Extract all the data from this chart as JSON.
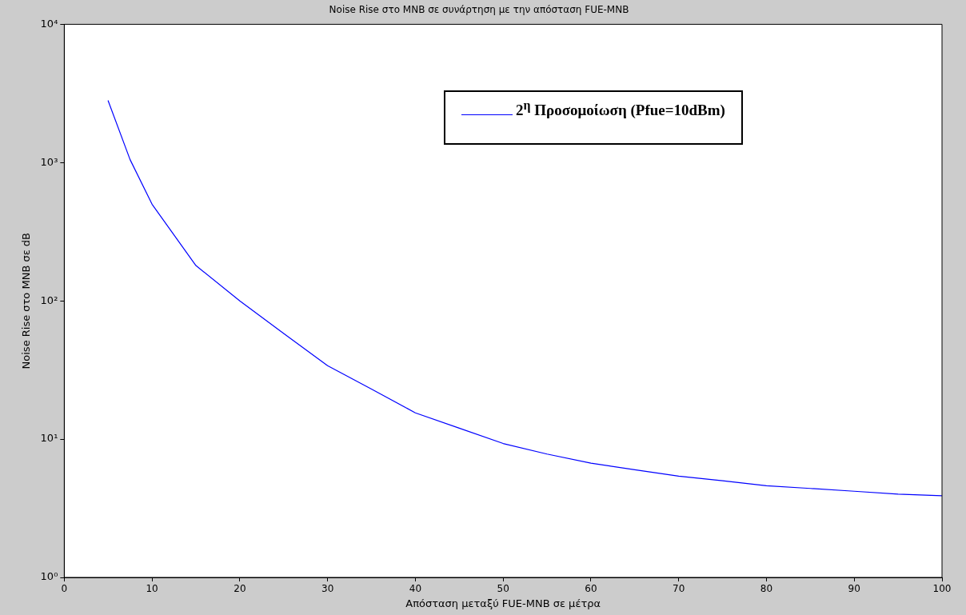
{
  "chart_data": {
    "type": "line",
    "title": "Noise Rise στο MNB σε συνάρτηση με την απόσταση FUE-MNB",
    "xlabel": "Απόσταση μεταξύ FUE-MNB σε μέτρα",
    "ylabel": "Noise Rise στο MNB σε dB",
    "x": [
      5,
      7.5,
      10,
      15,
      20,
      25,
      30,
      35,
      40,
      45,
      50,
      55,
      60,
      65,
      70,
      75,
      80,
      85,
      90,
      95,
      100
    ],
    "series": [
      {
        "name": "2$^{η}$ Προσομοίωση (Pfue=10dBm)",
        "color": "#0000ff",
        "values": [
          2800,
          1050,
          500,
          180,
          100,
          58,
          34,
          23,
          15.5,
          12,
          9.3,
          7.8,
          6.7,
          6,
          5.4,
          5,
          4.6,
          4.4,
          4.2,
          4,
          3.9
        ]
      }
    ],
    "xlim": [
      0,
      100
    ],
    "xticks": [
      0,
      10,
      20,
      30,
      40,
      50,
      60,
      70,
      80,
      90,
      100
    ],
    "ylim": [
      1,
      10000
    ],
    "yticks": [
      {
        "value": 1,
        "label": "10⁰"
      },
      {
        "value": 10,
        "label": "10¹"
      },
      {
        "value": 100,
        "label": "10²"
      },
      {
        "value": 1000,
        "label": "10³"
      },
      {
        "value": 10000,
        "label": "10⁴"
      }
    ],
    "log": true,
    "grid": false,
    "legend": "top right",
    "marker": "none",
    "line_style": "solid"
  }
}
